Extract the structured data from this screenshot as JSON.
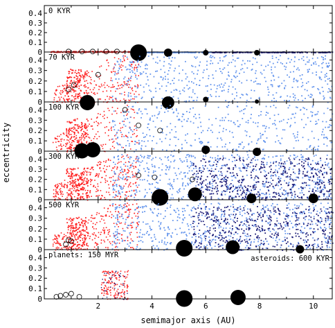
{
  "chart_data": {
    "type": "scatter",
    "xlabel": "semimajor axis (AU)",
    "ylabel": "eccentricity",
    "xlim": [
      0,
      10.7
    ],
    "ylim": [
      0,
      0.45
    ],
    "x_ticks": [
      "2",
      "4",
      "6",
      "8",
      "10"
    ],
    "y_ticks": [
      "0",
      "0.1",
      "0.2",
      "0.3",
      "0.4"
    ],
    "colors": {
      "inner_asteroids": "#ff2222",
      "outer_asteroids": "#6495ed",
      "far_asteroids": "#1c1c78",
      "planets": "#000000"
    },
    "panels": [
      {
        "label": "0 KYR",
        "embryos": [
          [
            0.9,
            0.005
          ],
          [
            1.4,
            0.005
          ],
          [
            1.8,
            0.005
          ],
          [
            2.3,
            0.005
          ],
          [
            2.7,
            0.005
          ]
        ],
        "planets": [
          [
            3.5,
            0.0,
            12
          ],
          [
            4.6,
            0.0,
            6
          ],
          [
            6.0,
            0.0,
            4
          ],
          [
            7.9,
            0.0,
            4
          ]
        ]
      },
      {
        "label": "70 KYR",
        "embryos": [
          [
            2.0,
            0.26
          ],
          [
            1.1,
            0.16
          ],
          [
            0.9,
            0.12
          ]
        ],
        "planets": [
          [
            1.6,
            0.0,
            11
          ],
          [
            4.6,
            0.0,
            9
          ],
          [
            6.0,
            0.03,
            4
          ],
          [
            7.9,
            0.01,
            3
          ]
        ]
      },
      {
        "label": "100 KYR",
        "embryos": [
          [
            3.0,
            0.4
          ],
          [
            3.5,
            0.25
          ],
          [
            4.3,
            0.2
          ]
        ],
        "planets": [
          [
            1.4,
            0.01,
            11
          ],
          [
            1.8,
            0.02,
            11
          ],
          [
            6.0,
            0.02,
            6
          ],
          [
            7.9,
            0.0,
            6
          ]
        ]
      },
      {
        "label": "300 KYR",
        "embryos": [
          [
            3.5,
            0.24
          ],
          [
            4.1,
            0.22
          ],
          [
            5.5,
            0.2
          ]
        ],
        "planets": [
          [
            4.3,
            0.03,
            12
          ],
          [
            5.6,
            0.06,
            10
          ],
          [
            7.7,
            0.02,
            7
          ],
          [
            10.0,
            0.02,
            7
          ]
        ]
      },
      {
        "label": "500 KYR",
        "embryos": [
          [
            0.8,
            0.05
          ],
          [
            0.9,
            0.09
          ],
          [
            1.0,
            0.08
          ]
        ],
        "planets": [
          [
            5.2,
            0.02,
            12
          ],
          [
            7.0,
            0.03,
            10
          ],
          [
            9.5,
            0.01,
            6
          ]
        ]
      },
      {
        "label": "planets: 150 MYR",
        "label_right": "asteroids: 600 KYR",
        "embryos": [
          [
            0.45,
            0.02
          ],
          [
            0.6,
            0.03
          ],
          [
            0.8,
            0.04
          ],
          [
            1.0,
            0.05
          ],
          [
            1.3,
            0.02
          ]
        ],
        "planets": [
          [
            5.2,
            0.01,
            12
          ],
          [
            7.2,
            0.02,
            11
          ]
        ]
      }
    ]
  }
}
